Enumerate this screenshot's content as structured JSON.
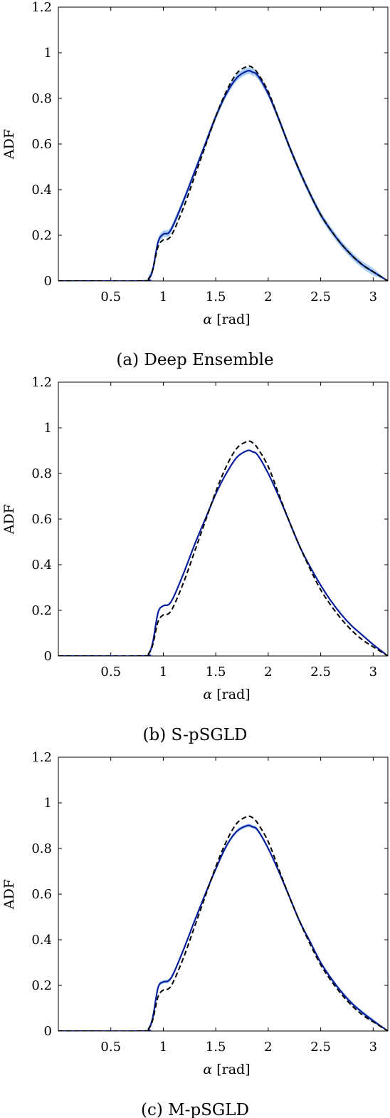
{
  "chart_data": [
    {
      "type": "line",
      "caption": "(a) Deep Ensemble",
      "xlabel_symbol": "α",
      "xlabel_unit": "[rad]",
      "ylabel": "ADF",
      "xlim": [
        0.0,
        3.14
      ],
      "ylim": [
        0,
        1.2
      ],
      "xticks": [
        0.5,
        1,
        1.5,
        2,
        2.5,
        3
      ],
      "xtick_labels": [
        "0.5",
        "1",
        "1.5",
        "2",
        "2.5",
        "3"
      ],
      "yticks": [
        0,
        0.2,
        0.4,
        0.6,
        0.8,
        1,
        1.2
      ],
      "ytick_labels": [
        "0",
        "0.2",
        "0.4",
        "0.6",
        "0.8",
        "1",
        "1.2"
      ],
      "grid": false,
      "legend": "none",
      "colors": {
        "prediction": "#0a1f9e",
        "band": "#8cc0ee",
        "reference": "#000000"
      },
      "series": [
        {
          "style": "solid",
          "color": "#0a1f9e",
          "x": [
            0,
            0.8,
            0.86,
            0.9,
            0.95,
            1.0,
            1.05,
            1.1,
            1.2,
            1.3,
            1.4,
            1.5,
            1.6,
            1.7,
            1.8,
            1.85,
            1.9,
            2.0,
            2.1,
            2.2,
            2.3,
            2.4,
            2.5,
            2.6,
            2.7,
            2.8,
            2.9,
            3.0,
            3.14
          ],
          "y": [
            0,
            0,
            0.01,
            0.05,
            0.17,
            0.205,
            0.21,
            0.25,
            0.36,
            0.48,
            0.6,
            0.72,
            0.82,
            0.89,
            0.92,
            0.915,
            0.9,
            0.82,
            0.71,
            0.59,
            0.48,
            0.38,
            0.29,
            0.22,
            0.16,
            0.11,
            0.07,
            0.04,
            0.0
          ]
        },
        {
          "style": "dashed",
          "color": "#000000",
          "x": [
            0,
            0.8,
            0.86,
            0.9,
            0.95,
            1.0,
            1.05,
            1.1,
            1.2,
            1.3,
            1.4,
            1.5,
            1.6,
            1.7,
            1.8,
            1.85,
            1.9,
            2.0,
            2.1,
            2.2,
            2.3,
            2.4,
            2.5,
            2.6,
            2.7,
            2.8,
            2.9,
            3.0,
            3.14
          ],
          "y": [
            0,
            0,
            0.01,
            0.05,
            0.15,
            0.18,
            0.185,
            0.22,
            0.33,
            0.46,
            0.59,
            0.72,
            0.83,
            0.91,
            0.94,
            0.935,
            0.91,
            0.83,
            0.71,
            0.59,
            0.48,
            0.38,
            0.29,
            0.22,
            0.16,
            0.11,
            0.07,
            0.04,
            0.0
          ]
        }
      ],
      "band_halfwidth": 0.015
    },
    {
      "type": "line",
      "caption": "(b) S-pSGLD",
      "xlabel_symbol": "α",
      "xlabel_unit": "[rad]",
      "ylabel": "ADF",
      "xlim": [
        0.0,
        3.14
      ],
      "ylim": [
        0,
        1.2
      ],
      "xticks": [
        0.5,
        1,
        1.5,
        2,
        2.5,
        3
      ],
      "xtick_labels": [
        "0.5",
        "1",
        "1.5",
        "2",
        "2.5",
        "3"
      ],
      "yticks": [
        0,
        0.2,
        0.4,
        0.6,
        0.8,
        1,
        1.2
      ],
      "ytick_labels": [
        "0",
        "0.2",
        "0.4",
        "0.6",
        "0.8",
        "1",
        "1.2"
      ],
      "grid": false,
      "legend": "none",
      "colors": {
        "prediction": "#0a1f9e",
        "band": "#8cc0ee",
        "reference": "#000000"
      },
      "series": [
        {
          "style": "solid",
          "color": "#0a1f9e",
          "x": [
            0,
            0.8,
            0.86,
            0.9,
            0.95,
            1.0,
            1.05,
            1.1,
            1.2,
            1.3,
            1.4,
            1.5,
            1.6,
            1.7,
            1.8,
            1.85,
            1.9,
            2.0,
            2.1,
            2.2,
            2.3,
            2.4,
            2.5,
            2.6,
            2.7,
            2.8,
            2.9,
            3.0,
            3.14
          ],
          "y": [
            0,
            0,
            0.01,
            0.06,
            0.19,
            0.22,
            0.225,
            0.26,
            0.37,
            0.49,
            0.6,
            0.71,
            0.8,
            0.87,
            0.9,
            0.895,
            0.88,
            0.8,
            0.7,
            0.59,
            0.48,
            0.39,
            0.31,
            0.24,
            0.18,
            0.13,
            0.09,
            0.05,
            0.0
          ]
        },
        {
          "style": "dashed",
          "color": "#000000",
          "x": [
            0,
            0.8,
            0.86,
            0.9,
            0.95,
            1.0,
            1.05,
            1.1,
            1.2,
            1.3,
            1.4,
            1.5,
            1.6,
            1.7,
            1.8,
            1.85,
            1.9,
            2.0,
            2.1,
            2.2,
            2.3,
            2.4,
            2.5,
            2.6,
            2.7,
            2.8,
            2.9,
            3.0,
            3.14
          ],
          "y": [
            0,
            0,
            0.01,
            0.05,
            0.15,
            0.18,
            0.185,
            0.22,
            0.33,
            0.46,
            0.59,
            0.72,
            0.83,
            0.91,
            0.94,
            0.935,
            0.91,
            0.83,
            0.71,
            0.59,
            0.48,
            0.38,
            0.29,
            0.22,
            0.16,
            0.11,
            0.07,
            0.04,
            0.0
          ]
        }
      ],
      "band_halfwidth": 0.004
    },
    {
      "type": "line",
      "caption": "(c) M-pSGLD",
      "xlabel_symbol": "α",
      "xlabel_unit": "[rad]",
      "ylabel": "ADF",
      "xlim": [
        0.0,
        3.14
      ],
      "ylim": [
        0,
        1.2
      ],
      "xticks": [
        0.5,
        1,
        1.5,
        2,
        2.5,
        3
      ],
      "xtick_labels": [
        "0.5",
        "1",
        "1.5",
        "2",
        "2.5",
        "3"
      ],
      "yticks": [
        0,
        0.2,
        0.4,
        0.6,
        0.8,
        1,
        1.2
      ],
      "ytick_labels": [
        "0",
        "0.2",
        "0.4",
        "0.6",
        "0.8",
        "1",
        "1.2"
      ],
      "grid": false,
      "legend": "none",
      "colors": {
        "prediction": "#0a1f9e",
        "band": "#8cc0ee",
        "reference": "#000000"
      },
      "series": [
        {
          "style": "solid",
          "color": "#0a1f9e",
          "x": [
            0,
            0.8,
            0.86,
            0.9,
            0.95,
            1.0,
            1.05,
            1.1,
            1.2,
            1.3,
            1.4,
            1.5,
            1.6,
            1.7,
            1.8,
            1.85,
            1.9,
            2.0,
            2.1,
            2.2,
            2.3,
            2.4,
            2.5,
            2.6,
            2.7,
            2.8,
            2.9,
            3.0,
            3.14
          ],
          "y": [
            0,
            0,
            0.01,
            0.06,
            0.19,
            0.215,
            0.22,
            0.255,
            0.365,
            0.485,
            0.6,
            0.71,
            0.81,
            0.875,
            0.9,
            0.895,
            0.88,
            0.8,
            0.7,
            0.59,
            0.48,
            0.39,
            0.3,
            0.23,
            0.17,
            0.12,
            0.08,
            0.045,
            0.0
          ]
        },
        {
          "style": "dashed",
          "color": "#000000",
          "x": [
            0,
            0.8,
            0.86,
            0.9,
            0.95,
            1.0,
            1.05,
            1.1,
            1.2,
            1.3,
            1.4,
            1.5,
            1.6,
            1.7,
            1.8,
            1.85,
            1.9,
            2.0,
            2.1,
            2.2,
            2.3,
            2.4,
            2.5,
            2.6,
            2.7,
            2.8,
            2.9,
            3.0,
            3.14
          ],
          "y": [
            0,
            0,
            0.01,
            0.05,
            0.15,
            0.18,
            0.185,
            0.22,
            0.33,
            0.46,
            0.59,
            0.72,
            0.83,
            0.91,
            0.94,
            0.935,
            0.91,
            0.83,
            0.71,
            0.59,
            0.48,
            0.38,
            0.29,
            0.22,
            0.16,
            0.11,
            0.07,
            0.04,
            0.0
          ]
        }
      ],
      "band_halfwidth": 0.008
    }
  ]
}
